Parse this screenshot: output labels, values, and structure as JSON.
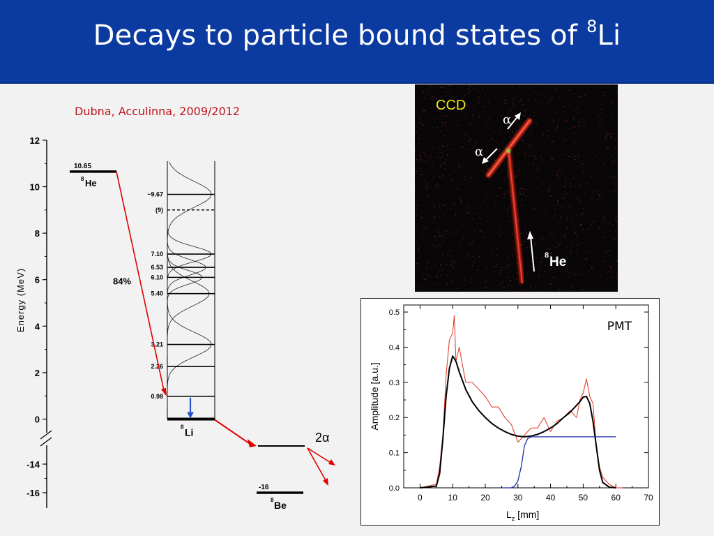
{
  "slide": {
    "title_main": "Decays to particle bound states of ",
    "title_sup": "8",
    "title_end": "Li",
    "citation": "Dubna, Acculinna, 2009/2012"
  },
  "level_scheme": {
    "y_axis_label": "Energy (MeV)",
    "y_ticks_upper": [
      0,
      2,
      4,
      6,
      8,
      10,
      12
    ],
    "y_ticks_lower": [
      -14,
      -16
    ],
    "he8_energy": "10.65",
    "he8_label_sup": "8",
    "he8_label": "He",
    "branching": "84%",
    "li8_label_sup": "8",
    "li8_label": "Li",
    "li8_levels": [
      {
        "energy": 9.67,
        "label": "~9.67",
        "dashed": false
      },
      {
        "energy": 9,
        "label": "(9)",
        "dashed": true
      },
      {
        "energy": 7.1,
        "label": "7.10",
        "dashed": false
      },
      {
        "energy": 6.53,
        "label": "6.53",
        "dashed": false
      },
      {
        "energy": 6.1,
        "label": "6.10",
        "dashed": false
      },
      {
        "energy": 5.4,
        "label": "5.40",
        "dashed": false
      },
      {
        "energy": 3.21,
        "label": "3.21",
        "dashed": false
      },
      {
        "energy": 2.26,
        "label": "2.26",
        "dashed": false
      },
      {
        "energy": 0.98,
        "label": "0.98",
        "dashed": false
      }
    ],
    "be8_energy": "-16",
    "be8_label_sup": "8",
    "be8_label": "Be",
    "breakup_label": "2α"
  },
  "ccd": {
    "label": "CCD",
    "alpha_top": "α",
    "alpha_left": "α",
    "he8_sup": "8",
    "he8_label": "He"
  },
  "chart_data": {
    "type": "line",
    "title": "PMT",
    "xlabel_main": "L",
    "xlabel_sub": "z",
    "xlabel_unit": " [mm]",
    "ylabel": "Amplitude [a.u.]",
    "xlim": [
      -5,
      70
    ],
    "ylim": [
      0,
      0.52
    ],
    "x_ticks": [
      0,
      10,
      20,
      30,
      40,
      50,
      60,
      70
    ],
    "y_ticks": [
      "0.0",
      "0.1",
      "0.2",
      "0.3",
      "0.4",
      "0.5"
    ],
    "series": [
      {
        "name": "",
        "color": "#e0301e",
        "x": [
          0,
          5,
          6,
          7,
          8,
          9,
          10,
          10.5,
          11,
          12,
          14,
          16,
          18,
          20,
          22,
          24,
          26,
          28,
          30,
          32,
          34,
          36,
          38,
          40,
          42,
          44,
          46,
          48,
          49,
          50,
          51,
          52,
          53,
          54,
          55,
          56,
          58,
          60,
          62
        ],
        "y": [
          0.0,
          0.01,
          0.06,
          0.15,
          0.32,
          0.42,
          0.44,
          0.49,
          0.36,
          0.4,
          0.3,
          0.3,
          0.28,
          0.26,
          0.23,
          0.23,
          0.2,
          0.18,
          0.13,
          0.15,
          0.17,
          0.17,
          0.2,
          0.16,
          0.19,
          0.2,
          0.22,
          0.2,
          0.25,
          0.27,
          0.31,
          0.26,
          0.24,
          0.12,
          0.06,
          0.03,
          0.01,
          0.0,
          0.0
        ]
      },
      {
        "name": "",
        "color": "#000000",
        "x": [
          0,
          5,
          6,
          7,
          8,
          9,
          10,
          11,
          12,
          14,
          16,
          18,
          20,
          22,
          24,
          26,
          28,
          30,
          32,
          34,
          36,
          38,
          40,
          42,
          44,
          46,
          48,
          49,
          50,
          51,
          52,
          53,
          54,
          55,
          56,
          58,
          60
        ],
        "y": [
          0.0,
          0.005,
          0.04,
          0.14,
          0.26,
          0.34,
          0.375,
          0.36,
          0.33,
          0.28,
          0.245,
          0.22,
          0.2,
          0.183,
          0.17,
          0.16,
          0.152,
          0.147,
          0.145,
          0.147,
          0.152,
          0.16,
          0.17,
          0.183,
          0.2,
          0.215,
          0.235,
          0.245,
          0.258,
          0.26,
          0.24,
          0.19,
          0.12,
          0.05,
          0.015,
          0.002,
          0.0
        ]
      },
      {
        "name": "",
        "color": "#1a2aa8",
        "x": [
          25,
          28,
          29,
          30,
          31,
          32,
          33,
          34,
          35,
          38,
          60
        ],
        "y": [
          0.0,
          0.0,
          0.005,
          0.02,
          0.06,
          0.12,
          0.14,
          0.145,
          0.145,
          0.145,
          0.145
        ]
      }
    ]
  }
}
